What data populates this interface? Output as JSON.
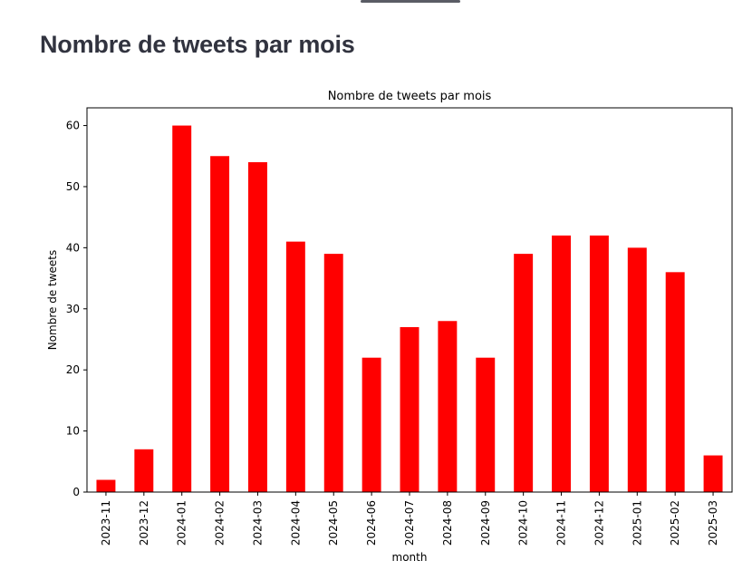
{
  "page": {
    "heading": "Nombre de tweets par mois"
  },
  "chart_data": {
    "type": "bar",
    "title": "Nombre de tweets par mois",
    "xlabel": "month",
    "ylabel": "Nombre de tweets",
    "categories": [
      "2023-11",
      "2023-12",
      "2024-01",
      "2024-02",
      "2024-03",
      "2024-04",
      "2024-05",
      "2024-06",
      "2024-07",
      "2024-08",
      "2024-09",
      "2024-10",
      "2024-11",
      "2024-12",
      "2025-01",
      "2025-02",
      "2025-03"
    ],
    "values": [
      2,
      7,
      60,
      55,
      54,
      41,
      39,
      22,
      27,
      28,
      22,
      39,
      42,
      42,
      40,
      36,
      6
    ],
    "yticks": [
      "0",
      "10",
      "20",
      "30",
      "40",
      "50",
      "60"
    ],
    "ylim": [
      0,
      62.9
    ],
    "bar_color": "#ff0000",
    "grid": false,
    "legend": "none"
  }
}
